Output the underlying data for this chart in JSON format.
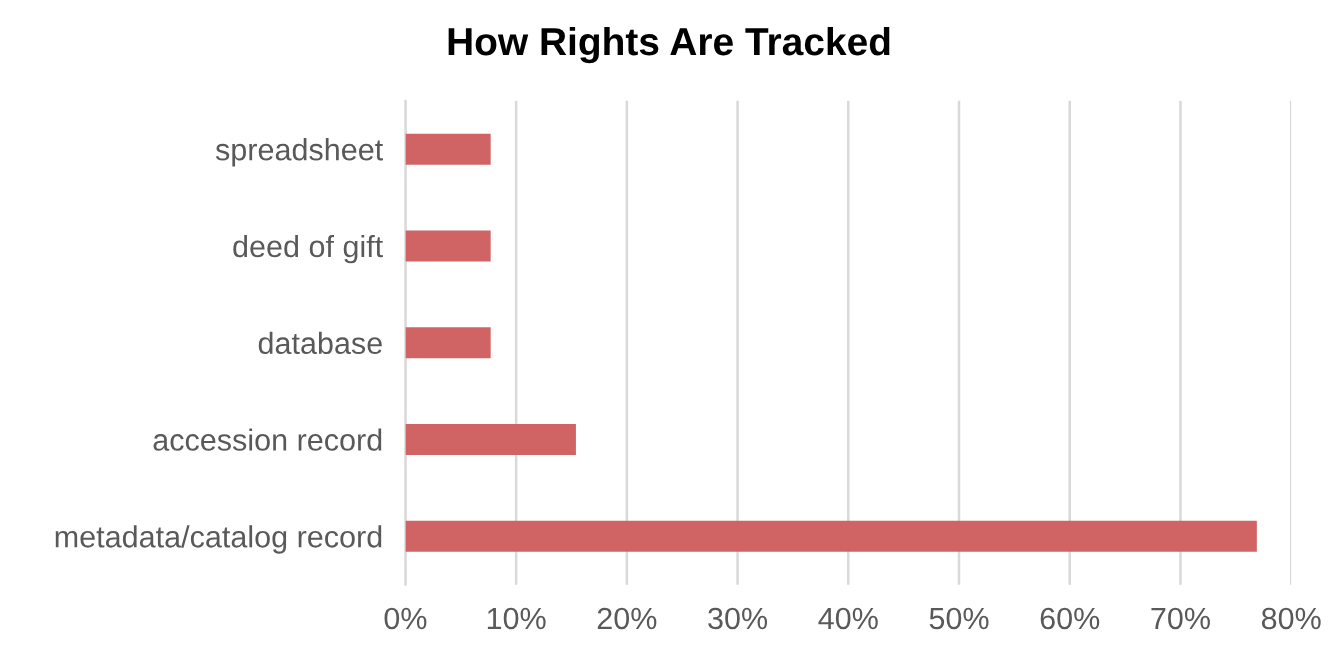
{
  "chart_data": {
    "type": "bar",
    "orientation": "horizontal",
    "title": "How Rights Are Tracked",
    "categories": [
      "spreadsheet",
      "deed of gift",
      "database",
      "accession record",
      "metadata/catalog record"
    ],
    "values": [
      7.7,
      7.7,
      7.7,
      15.4,
      76.9
    ],
    "color": "#d06464",
    "xlim": [
      0,
      80
    ],
    "xticks": [
      {
        "value": 0,
        "label": "0%"
      },
      {
        "value": 10,
        "label": "10%"
      },
      {
        "value": 20,
        "label": "20%"
      },
      {
        "value": 30,
        "label": "30%"
      },
      {
        "value": 40,
        "label": "40%"
      },
      {
        "value": 50,
        "label": "50%"
      },
      {
        "value": 60,
        "label": "60%"
      },
      {
        "value": 70,
        "label": "70%"
      },
      {
        "value": 80,
        "label": "80%"
      }
    ],
    "grid": "x"
  }
}
